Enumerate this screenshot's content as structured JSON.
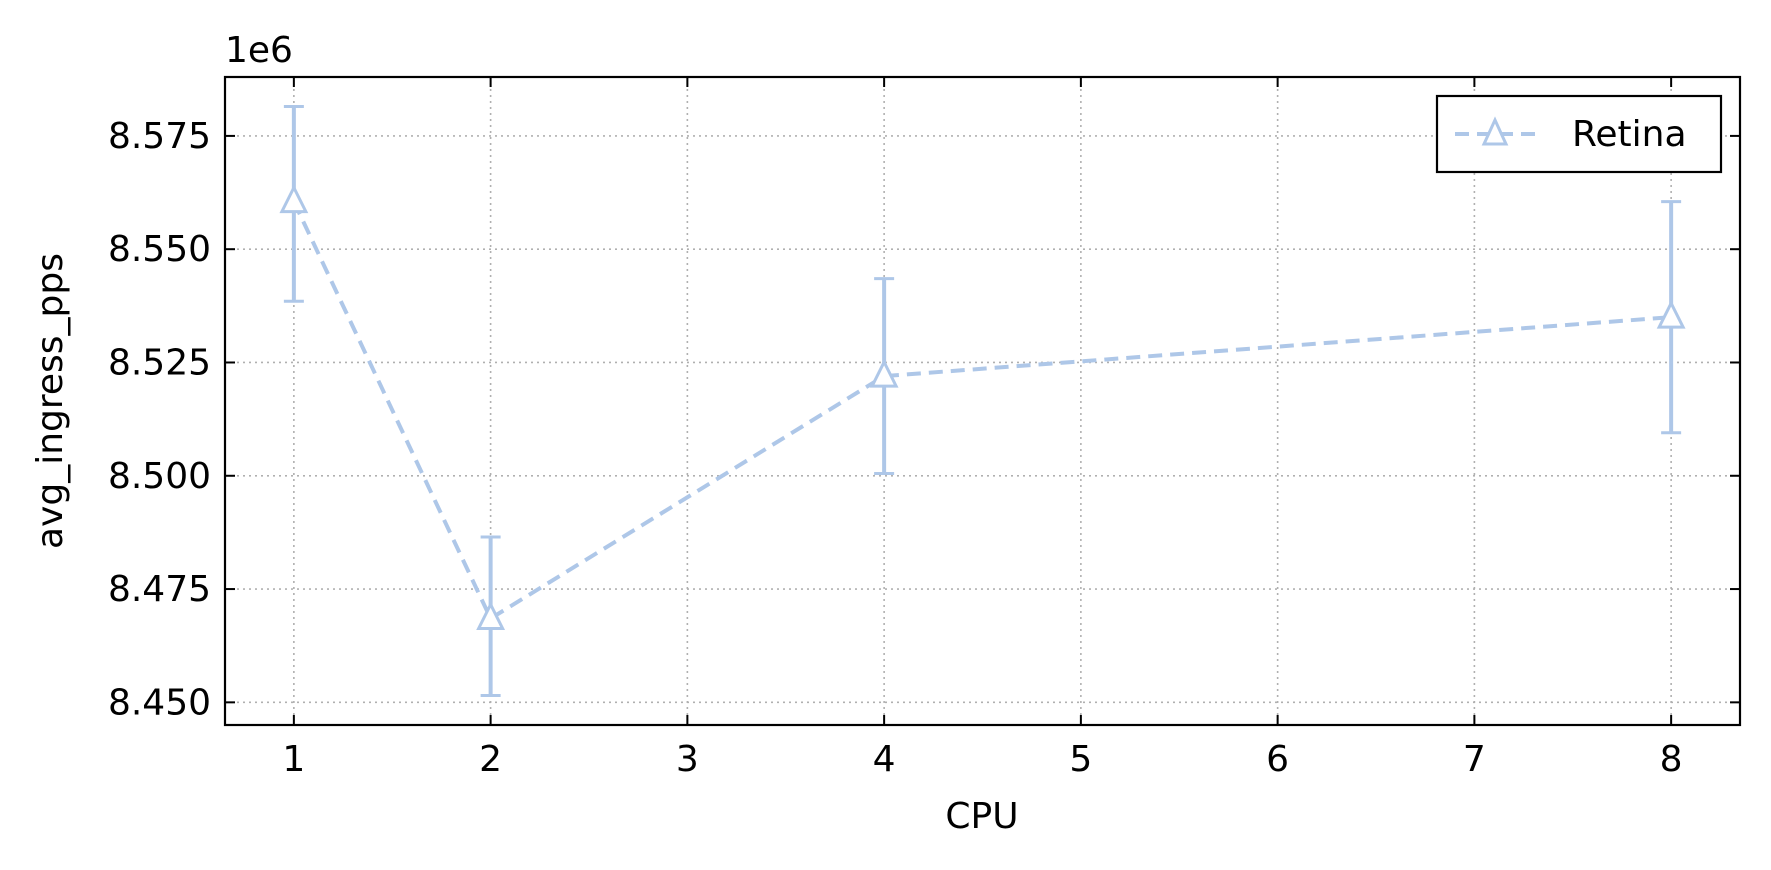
{
  "chart_data": {
    "type": "line",
    "title": "",
    "xlabel": "CPU",
    "ylabel": "avg_ingress_pps",
    "y_offset_label": "1e6",
    "xlim": [
      0.65,
      8.35
    ],
    "ylim": [
      8.445,
      8.588
    ],
    "x_ticks": [
      1,
      2,
      3,
      4,
      5,
      6,
      7,
      8
    ],
    "x_tick_labels": [
      "1",
      "2",
      "3",
      "4",
      "5",
      "6",
      "7",
      "8"
    ],
    "y_ticks": [
      8.45,
      8.475,
      8.5,
      8.525,
      8.55,
      8.575
    ],
    "y_tick_labels": [
      "8.450",
      "8.475",
      "8.500",
      "8.525",
      "8.550",
      "8.575"
    ],
    "grid": true,
    "legend_position": "top-right",
    "series": [
      {
        "name": "Retina",
        "color": "#aec7e8",
        "marker": "triangle-open",
        "line_style": "dashed",
        "x": [
          1,
          2,
          4,
          8
        ],
        "y": [
          8.5605,
          8.4685,
          8.522,
          8.535
        ],
        "err_low": [
          8.5385,
          8.4515,
          8.5005,
          8.5095
        ],
        "err_high": [
          8.5815,
          8.4865,
          8.5435,
          8.5605
        ]
      }
    ]
  }
}
